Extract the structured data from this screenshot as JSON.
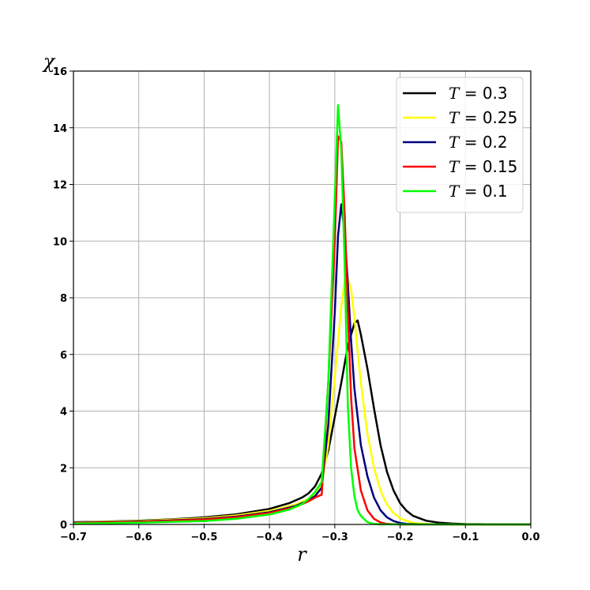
{
  "chart_data": {
    "type": "line",
    "xlabel": "r",
    "ylabel": "χ",
    "xlim": [
      -0.7,
      0.0
    ],
    "ylim": [
      0,
      16
    ],
    "x_ticks": [
      -0.7,
      -0.6,
      -0.5,
      -0.4,
      -0.3,
      -0.2,
      -0.1,
      0.0
    ],
    "x_tick_labels": [
      "−0.7",
      "−0.6",
      "−0.5",
      "−0.4",
      "−0.3",
      "−0.2",
      "−0.1",
      "0.0"
    ],
    "y_ticks": [
      0,
      2,
      4,
      6,
      8,
      10,
      12,
      14,
      16
    ],
    "y_tick_labels": [
      "0",
      "2",
      "4",
      "6",
      "8",
      "10",
      "12",
      "14",
      "16"
    ],
    "grid": true,
    "legend_position": "top-right",
    "series": [
      {
        "name": "T = 0.3",
        "legend_var": "T",
        "legend_value": "0.3",
        "color": "#000000",
        "x": [
          -0.7,
          -0.65,
          -0.6,
          -0.55,
          -0.5,
          -0.45,
          -0.4,
          -0.37,
          -0.35,
          -0.34,
          -0.33,
          -0.32,
          -0.31,
          -0.3,
          -0.29,
          -0.28,
          -0.27,
          -0.265,
          -0.26,
          -0.25,
          -0.24,
          -0.23,
          -0.22,
          -0.21,
          -0.2,
          -0.19,
          -0.18,
          -0.16,
          -0.14,
          -0.12,
          -0.1,
          -0.05,
          0.0
        ],
        "y": [
          0.08,
          0.1,
          0.13,
          0.18,
          0.25,
          0.36,
          0.55,
          0.75,
          0.95,
          1.1,
          1.35,
          1.8,
          2.6,
          3.8,
          5.0,
          6.3,
          7.1,
          7.2,
          6.7,
          5.5,
          4.1,
          2.8,
          1.85,
          1.2,
          0.75,
          0.48,
          0.3,
          0.13,
          0.06,
          0.03,
          0.015,
          0.003,
          0.0
        ]
      },
      {
        "name": "T = 0.25",
        "legend_var": "T",
        "legend_value": "0.25",
        "color": "#ffff00",
        "x": [
          -0.7,
          -0.6,
          -0.5,
          -0.45,
          -0.4,
          -0.36,
          -0.34,
          -0.33,
          -0.32,
          -0.31,
          -0.3,
          -0.29,
          -0.285,
          -0.28,
          -0.275,
          -0.27,
          -0.265,
          -0.26,
          -0.25,
          -0.24,
          -0.23,
          -0.22,
          -0.21,
          -0.2,
          -0.19,
          -0.18,
          -0.17,
          -0.15,
          -0.12,
          0.0
        ],
        "y": [
          0.07,
          0.12,
          0.22,
          0.32,
          0.48,
          0.7,
          0.9,
          1.05,
          1.4,
          2.8,
          5.2,
          7.7,
          8.6,
          8.7,
          8.3,
          7.3,
          6.1,
          5.0,
          3.2,
          2.0,
          1.2,
          0.7,
          0.4,
          0.22,
          0.12,
          0.06,
          0.03,
          0.01,
          0.002,
          0.0
        ]
      },
      {
        "name": "T = 0.2",
        "legend_var": "T",
        "legend_value": "0.2",
        "color": "#00007f",
        "x": [
          -0.7,
          -0.6,
          -0.5,
          -0.45,
          -0.4,
          -0.36,
          -0.34,
          -0.33,
          -0.32,
          -0.31,
          -0.3,
          -0.295,
          -0.29,
          -0.285,
          -0.28,
          -0.275,
          -0.27,
          -0.26,
          -0.25,
          -0.24,
          -0.23,
          -0.22,
          -0.21,
          -0.2,
          -0.19,
          -0.17,
          0.0
        ],
        "y": [
          0.06,
          0.1,
          0.19,
          0.28,
          0.43,
          0.65,
          0.85,
          1.0,
          1.3,
          3.5,
          7.5,
          10.2,
          11.3,
          10.3,
          8.5,
          6.5,
          4.8,
          2.8,
          1.7,
          0.95,
          0.5,
          0.25,
          0.12,
          0.05,
          0.02,
          0.005,
          0.0
        ]
      },
      {
        "name": "T = 0.15",
        "legend_var": "T",
        "legend_value": "0.15",
        "color": "#ff0000",
        "x": [
          -0.7,
          -0.6,
          -0.5,
          -0.45,
          -0.4,
          -0.36,
          -0.34,
          -0.33,
          -0.32,
          -0.31,
          -0.3,
          -0.295,
          -0.29,
          -0.285,
          -0.28,
          -0.275,
          -0.27,
          -0.26,
          -0.25,
          -0.24,
          -0.23,
          -0.22,
          -0.21,
          -0.2,
          0.0
        ],
        "y": [
          0.05,
          0.09,
          0.17,
          0.26,
          0.4,
          0.62,
          0.82,
          0.95,
          1.05,
          5.0,
          10.0,
          13.7,
          13.5,
          11.0,
          7.5,
          4.5,
          2.7,
          1.2,
          0.5,
          0.2,
          0.07,
          0.02,
          0.006,
          0.0,
          0.0
        ]
      },
      {
        "name": "T = 0.1",
        "legend_var": "T",
        "legend_value": "0.1",
        "color": "#00ff00",
        "x": [
          -0.7,
          -0.6,
          -0.5,
          -0.45,
          -0.4,
          -0.37,
          -0.35,
          -0.34,
          -0.33,
          -0.32,
          -0.31,
          -0.3,
          -0.295,
          -0.29,
          -0.285,
          -0.28,
          -0.275,
          -0.27,
          -0.265,
          -0.26,
          -0.25,
          -0.24,
          -0.23,
          0.0
        ],
        "y": [
          0.03,
          0.06,
          0.12,
          0.2,
          0.35,
          0.52,
          0.72,
          0.9,
          1.15,
          1.5,
          5.0,
          11.5,
          14.8,
          13.2,
          9.3,
          4.2,
          2.0,
          1.0,
          0.5,
          0.3,
          0.08,
          0.02,
          0.004,
          0.0
        ]
      }
    ]
  }
}
